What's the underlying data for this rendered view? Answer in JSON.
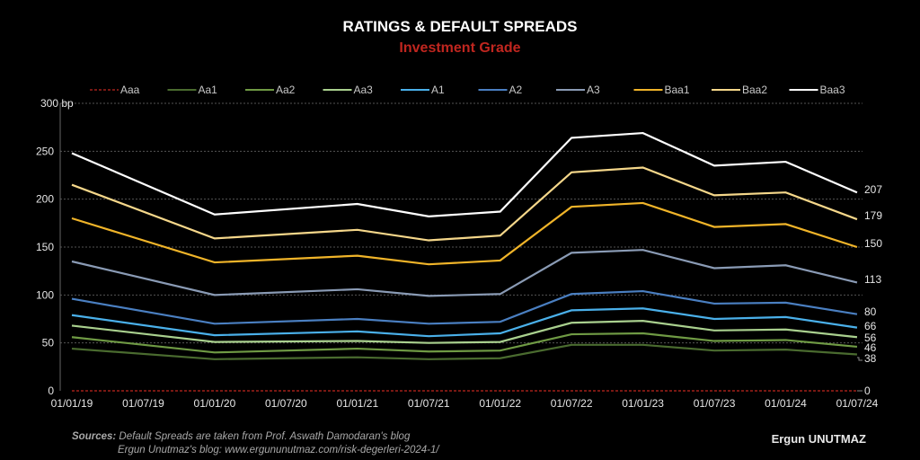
{
  "header": {
    "title": "RATINGS & DEFAULT SPREADS",
    "subtitle": "Investment Grade",
    "subtitle_color": "#c0261f"
  },
  "footer": {
    "sources_label": "Sources:",
    "sources_line1": "Default Spreads are taken from Prof. Aswath Damodaran's blog",
    "sources_line2": "Ergun Unutmaz's blog: www.ergununutmaz.com/risk-degerleri-2024-1/",
    "author": "Ergun UNUTMAZ"
  },
  "chart_data": {
    "type": "line",
    "title": "RATINGS & DEFAULT SPREADS",
    "subtitle": "Investment Grade",
    "xlabel": "",
    "ylabel": "bp",
    "ylim": [
      0,
      300
    ],
    "yticks": [
      0,
      50,
      100,
      150,
      200,
      250,
      300
    ],
    "ytick_labels": [
      "0",
      "50",
      "100",
      "150",
      "200",
      "250",
      "300 bp"
    ],
    "grid": "horizontal-dashed",
    "legend_position": "top",
    "x_tick_labels": [
      "01/01/19",
      "01/07/19",
      "01/01/20",
      "01/07/20",
      "01/01/21",
      "01/07/21",
      "01/01/22",
      "01/07/22",
      "01/01/23",
      "01/07/23",
      "01/01/24",
      "01/07/24"
    ],
    "x_point_indices": [
      0,
      2,
      4,
      5,
      6,
      7,
      8,
      9,
      10,
      11
    ],
    "x": [
      "01/01/19",
      "01/01/20",
      "01/01/21",
      "01/07/21",
      "01/01/22",
      "01/07/22",
      "01/01/23",
      "01/07/23",
      "01/01/24",
      "01/07/24"
    ],
    "series": [
      {
        "name": "Aaa",
        "color": "#c0261f",
        "dashed": true,
        "values": [
          0,
          0,
          0,
          0,
          0,
          0,
          0,
          0,
          0,
          0
        ],
        "end_label": "0"
      },
      {
        "name": "Aa1",
        "color": "#4a6b2f",
        "dashed": false,
        "values": [
          44,
          33,
          35,
          33,
          34,
          48,
          48,
          42,
          43,
          38
        ],
        "end_label": "38"
      },
      {
        "name": "Aa2",
        "color": "#6f9a44",
        "dashed": false,
        "values": [
          56,
          40,
          44,
          41,
          42,
          59,
          60,
          52,
          53,
          46
        ],
        "end_label": "46"
      },
      {
        "name": "Aa3",
        "color": "#a9d08e",
        "dashed": false,
        "values": [
          68,
          51,
          52,
          50,
          51,
          71,
          73,
          63,
          64,
          56
        ],
        "end_label": "56"
      },
      {
        "name": "A1",
        "color": "#4ab0ea",
        "dashed": false,
        "values": [
          79,
          58,
          62,
          57,
          60,
          84,
          86,
          75,
          77,
          66
        ],
        "end_label": "66"
      },
      {
        "name": "A2",
        "color": "#4a7fc1",
        "dashed": false,
        "values": [
          96,
          70,
          75,
          70,
          72,
          101,
          104,
          91,
          92,
          80
        ],
        "end_label": "80"
      },
      {
        "name": "A3",
        "color": "#8a9bb5",
        "dashed": false,
        "values": [
          135,
          100,
          106,
          99,
          101,
          144,
          147,
          128,
          131,
          113
        ],
        "end_label": "113"
      },
      {
        "name": "Baa1",
        "color": "#f0b429",
        "dashed": false,
        "values": [
          180,
          134,
          141,
          132,
          136,
          192,
          196,
          171,
          174,
          150
        ],
        "end_label": "150"
      },
      {
        "name": "Baa2",
        "color": "#f5d78a",
        "dashed": false,
        "values": [
          215,
          159,
          168,
          157,
          162,
          228,
          233,
          204,
          207,
          179
        ],
        "end_label": "179"
      },
      {
        "name": "Baa3",
        "color": "#ffffff",
        "dashed": false,
        "values": [
          248,
          184,
          195,
          182,
          187,
          264,
          269,
          235,
          239,
          207
        ],
        "end_label": "207"
      }
    ]
  }
}
